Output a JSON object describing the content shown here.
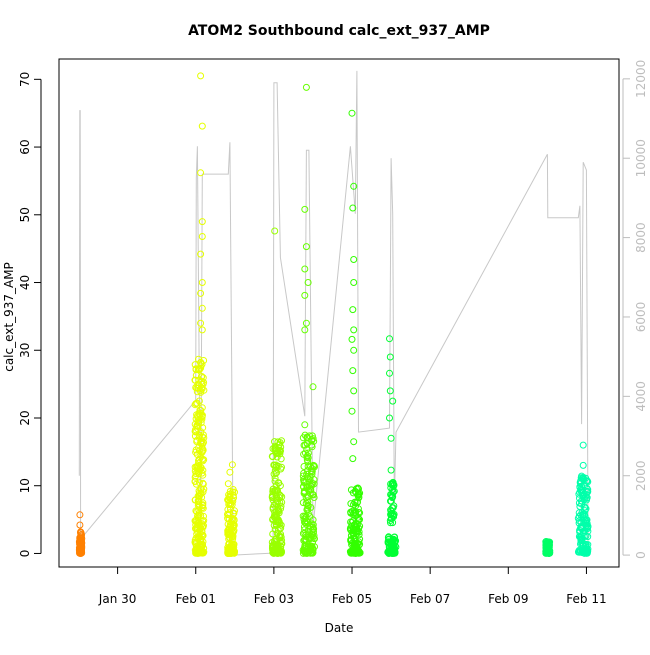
{
  "chart_data": {
    "type": "scatter",
    "title": "ATOM2 Southbound calc_ext_937_AMP",
    "xlabel": "Date",
    "ylabel": "calc_ext_937_AMP",
    "x_axis": {
      "type": "date",
      "range": [
        "2019-01-28T12:00",
        "2019-02-11T20:00"
      ],
      "ticks": [
        {
          "date": "2019-01-30",
          "label": "Jan 30"
        },
        {
          "date": "2019-02-01",
          "label": "Feb 01"
        },
        {
          "date": "2019-02-03",
          "label": "Feb 03"
        },
        {
          "date": "2019-02-05",
          "label": "Feb 05"
        },
        {
          "date": "2019-02-07",
          "label": "Feb 07"
        },
        {
          "date": "2019-02-09",
          "label": "Feb 09"
        },
        {
          "date": "2019-02-11",
          "label": "Feb 11"
        }
      ]
    },
    "y_axis_left": {
      "ylim": [
        -2,
        73
      ],
      "ticks": [
        0,
        10,
        20,
        30,
        40,
        50,
        60,
        70
      ]
    },
    "y_axis_right": {
      "ylim": [
        -300,
        12500
      ],
      "ticks": [
        0,
        2000,
        4000,
        6000,
        8000,
        10000,
        12000
      ],
      "color": "#bdbdbd"
    },
    "grid": false,
    "legend": "none",
    "clusters": [
      {
        "start": "2019-01-29T00:30",
        "end": "2019-01-29T02:00",
        "color": "#ff8000",
        "dense_max": 3.2,
        "outliers": [
          {
            "x": "2019-01-29T00:50",
            "y": 5.7
          },
          {
            "x": "2019-01-29T00:50",
            "y": 4.2
          }
        ]
      },
      {
        "start": "2019-01-31T23:30",
        "end": "2019-02-01T05:00",
        "color": "#e5ff00",
        "dense_max": 29,
        "outliers": [
          {
            "x": "2019-02-01T03:00",
            "y": 70.5
          },
          {
            "x": "2019-02-01T04:00",
            "y": 63.1
          },
          {
            "x": "2019-02-01T03:00",
            "y": 56.2
          },
          {
            "x": "2019-02-01T04:00",
            "y": 49.0
          },
          {
            "x": "2019-02-01T04:00",
            "y": 46.8
          },
          {
            "x": "2019-02-01T03:00",
            "y": 44.2
          },
          {
            "x": "2019-02-01T04:00",
            "y": 40.0
          },
          {
            "x": "2019-02-01T03:00",
            "y": 38.4
          },
          {
            "x": "2019-02-01T04:00",
            "y": 36.2
          },
          {
            "x": "2019-02-01T03:00",
            "y": 34.0
          },
          {
            "x": "2019-02-01T04:00",
            "y": 33.0
          }
        ]
      },
      {
        "start": "2019-02-01T19:30",
        "end": "2019-02-01T23:59",
        "color": "#e5ff00",
        "dense_max": 9.5,
        "outliers": [
          {
            "x": "2019-02-01T22:30",
            "y": 13.1
          },
          {
            "x": "2019-02-01T21:00",
            "y": 12.0
          },
          {
            "x": "2019-02-01T20:00",
            "y": 10.3
          }
        ]
      },
      {
        "start": "2019-02-02T23:00",
        "end": "2019-02-03T05:00",
        "color": "#99ff00",
        "dense_max": 17.5,
        "outliers": [
          {
            "x": "2019-02-03T00:30",
            "y": 47.6
          },
          {
            "x": "2019-02-03T04:00",
            "y": 10.0
          }
        ]
      },
      {
        "start": "2019-02-03T18:00",
        "end": "2019-02-04T01:00",
        "color": "#66ff00",
        "dense_max": 17.5,
        "outliers": [
          {
            "x": "2019-02-03T20:00",
            "y": 68.8
          },
          {
            "x": "2019-02-03T19:00",
            "y": 50.8
          },
          {
            "x": "2019-02-03T20:00",
            "y": 45.3
          },
          {
            "x": "2019-02-03T19:00",
            "y": 42.0
          },
          {
            "x": "2019-02-03T21:00",
            "y": 40.0
          },
          {
            "x": "2019-02-03T19:00",
            "y": 38.1
          },
          {
            "x": "2019-02-03T20:00",
            "y": 34.0
          },
          {
            "x": "2019-02-03T19:00",
            "y": 33.0
          },
          {
            "x": "2019-02-04T00:00",
            "y": 24.6
          },
          {
            "x": "2019-02-03T19:00",
            "y": 19.0
          }
        ]
      },
      {
        "start": "2019-02-04T23:00",
        "end": "2019-02-05T05:00",
        "color": "#33ff00",
        "dense_max": 10,
        "outliers": [
          {
            "x": "2019-02-05T00:00",
            "y": 65.0
          },
          {
            "x": "2019-02-05T01:00",
            "y": 54.2
          },
          {
            "x": "2019-02-05T00:30",
            "y": 51.0
          },
          {
            "x": "2019-02-05T01:00",
            "y": 43.4
          },
          {
            "x": "2019-02-05T01:00",
            "y": 40.0
          },
          {
            "x": "2019-02-05T00:30",
            "y": 36.0
          },
          {
            "x": "2019-02-05T01:00",
            "y": 33.0
          },
          {
            "x": "2019-02-05T00:00",
            "y": 31.6
          },
          {
            "x": "2019-02-05T01:00",
            "y": 30.0
          },
          {
            "x": "2019-02-05T00:30",
            "y": 27.0
          },
          {
            "x": "2019-02-05T01:00",
            "y": 24.0
          },
          {
            "x": "2019-02-05T00:00",
            "y": 21.0
          },
          {
            "x": "2019-02-05T01:00",
            "y": 16.5
          },
          {
            "x": "2019-02-05T00:30",
            "y": 14.0
          }
        ]
      },
      {
        "start": "2019-02-05T22:00",
        "end": "2019-02-06T03:00",
        "color": "#00ff33",
        "dense_max": 2.5,
        "upper_band": [
          4.5,
          10.5
        ],
        "outliers": [
          {
            "x": "2019-02-05T23:00",
            "y": 31.7
          },
          {
            "x": "2019-02-05T23:30",
            "y": 29.0
          },
          {
            "x": "2019-02-05T23:00",
            "y": 26.6
          },
          {
            "x": "2019-02-05T23:30",
            "y": 24.0
          },
          {
            "x": "2019-02-06T01:00",
            "y": 22.5
          },
          {
            "x": "2019-02-05T23:00",
            "y": 20.0
          },
          {
            "x": "2019-02-06T00:00",
            "y": 17.0
          },
          {
            "x": "2019-02-06T00:00",
            "y": 12.3
          }
        ]
      },
      {
        "start": "2019-02-09T23:00",
        "end": "2019-02-10T01:30",
        "color": "#00ff66",
        "dense_max": 1.8,
        "outliers": []
      },
      {
        "start": "2019-02-10T19:00",
        "end": "2019-02-11T01:00",
        "color": "#00ffaa",
        "dense_max": 11.5,
        "outliers": [
          {
            "x": "2019-02-10T22:00",
            "y": 16.0
          },
          {
            "x": "2019-02-10T22:00",
            "y": 13.0
          }
        ]
      }
    ],
    "right_axis_trace": {
      "color": "#c8c8c8",
      "points": [
        {
          "x": "2019-01-29T00:30",
          "y": 2000
        },
        {
          "x": "2019-01-29T00:45",
          "y": 11200
        },
        {
          "x": "2019-01-29T01:00",
          "y": 11200
        },
        {
          "x": "2019-01-29T01:15",
          "y": 400
        },
        {
          "x": "2019-02-01T00:00",
          "y": 3900
        },
        {
          "x": "2019-02-01T00:20",
          "y": 9500
        },
        {
          "x": "2019-02-01T01:00",
          "y": 10300
        },
        {
          "x": "2019-02-01T03:00",
          "y": 200
        },
        {
          "x": "2019-02-01T04:00",
          "y": 9600
        },
        {
          "x": "2019-02-01T05:00",
          "y": 9600
        },
        {
          "x": "2019-02-01T20:00",
          "y": 9600
        },
        {
          "x": "2019-02-01T21:00",
          "y": 10400
        },
        {
          "x": "2019-02-01T23:00",
          "y": 0
        },
        {
          "x": "2019-02-02T23:30",
          "y": 50
        },
        {
          "x": "2019-02-03T00:00",
          "y": 11900
        },
        {
          "x": "2019-02-03T02:00",
          "y": 11900
        },
        {
          "x": "2019-02-03T04:00",
          "y": 7500
        },
        {
          "x": "2019-02-03T19:00",
          "y": 3500
        },
        {
          "x": "2019-02-03T20:00",
          "y": 10200
        },
        {
          "x": "2019-02-03T21:30",
          "y": 10200
        },
        {
          "x": "2019-02-04T00:00",
          "y": 700
        },
        {
          "x": "2019-02-04T23:00",
          "y": 10300
        },
        {
          "x": "2019-02-05T02:00",
          "y": 8600
        },
        {
          "x": "2019-02-05T03:00",
          "y": 12200
        },
        {
          "x": "2019-02-05T04:00",
          "y": 3100
        },
        {
          "x": "2019-02-05T23:00",
          "y": 3200
        },
        {
          "x": "2019-02-06T00:00",
          "y": 10000
        },
        {
          "x": "2019-02-06T01:00",
          "y": 8600
        },
        {
          "x": "2019-02-06T02:00",
          "y": 1300
        },
        {
          "x": "2019-02-06T03:00",
          "y": 3100
        },
        {
          "x": "2019-02-10T00:00",
          "y": 10100
        },
        {
          "x": "2019-02-10T00:15",
          "y": 8500
        },
        {
          "x": "2019-02-10T19:00",
          "y": 8500
        },
        {
          "x": "2019-02-10T20:00",
          "y": 8800
        },
        {
          "x": "2019-02-10T21:00",
          "y": 3300
        },
        {
          "x": "2019-02-10T22:00",
          "y": 9900
        },
        {
          "x": "2019-02-11T00:00",
          "y": 9700
        },
        {
          "x": "2019-02-11T01:00",
          "y": 100
        }
      ]
    }
  }
}
